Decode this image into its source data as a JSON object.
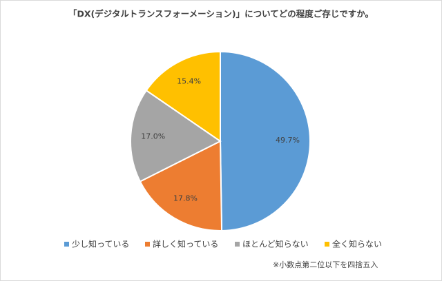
{
  "chart_data": {
    "type": "pie",
    "title": "「DX(デジタルトランスフォーメーション)」についてどの程度ご存じですか。",
    "categories": [
      "少し知っている",
      "詳しく知っている",
      "ほとんど知らない",
      "全く知らない"
    ],
    "values": [
      49.7,
      17.8,
      17.0,
      15.4
    ],
    "value_labels": [
      "49.7%",
      "17.8%",
      "17.0%",
      "15.4%"
    ],
    "colors": [
      "#5b9bd5",
      "#ed7d31",
      "#a5a5a5",
      "#ffc000"
    ],
    "legend": "bottom",
    "note": "※小数点第二位以下を四捨五入"
  }
}
